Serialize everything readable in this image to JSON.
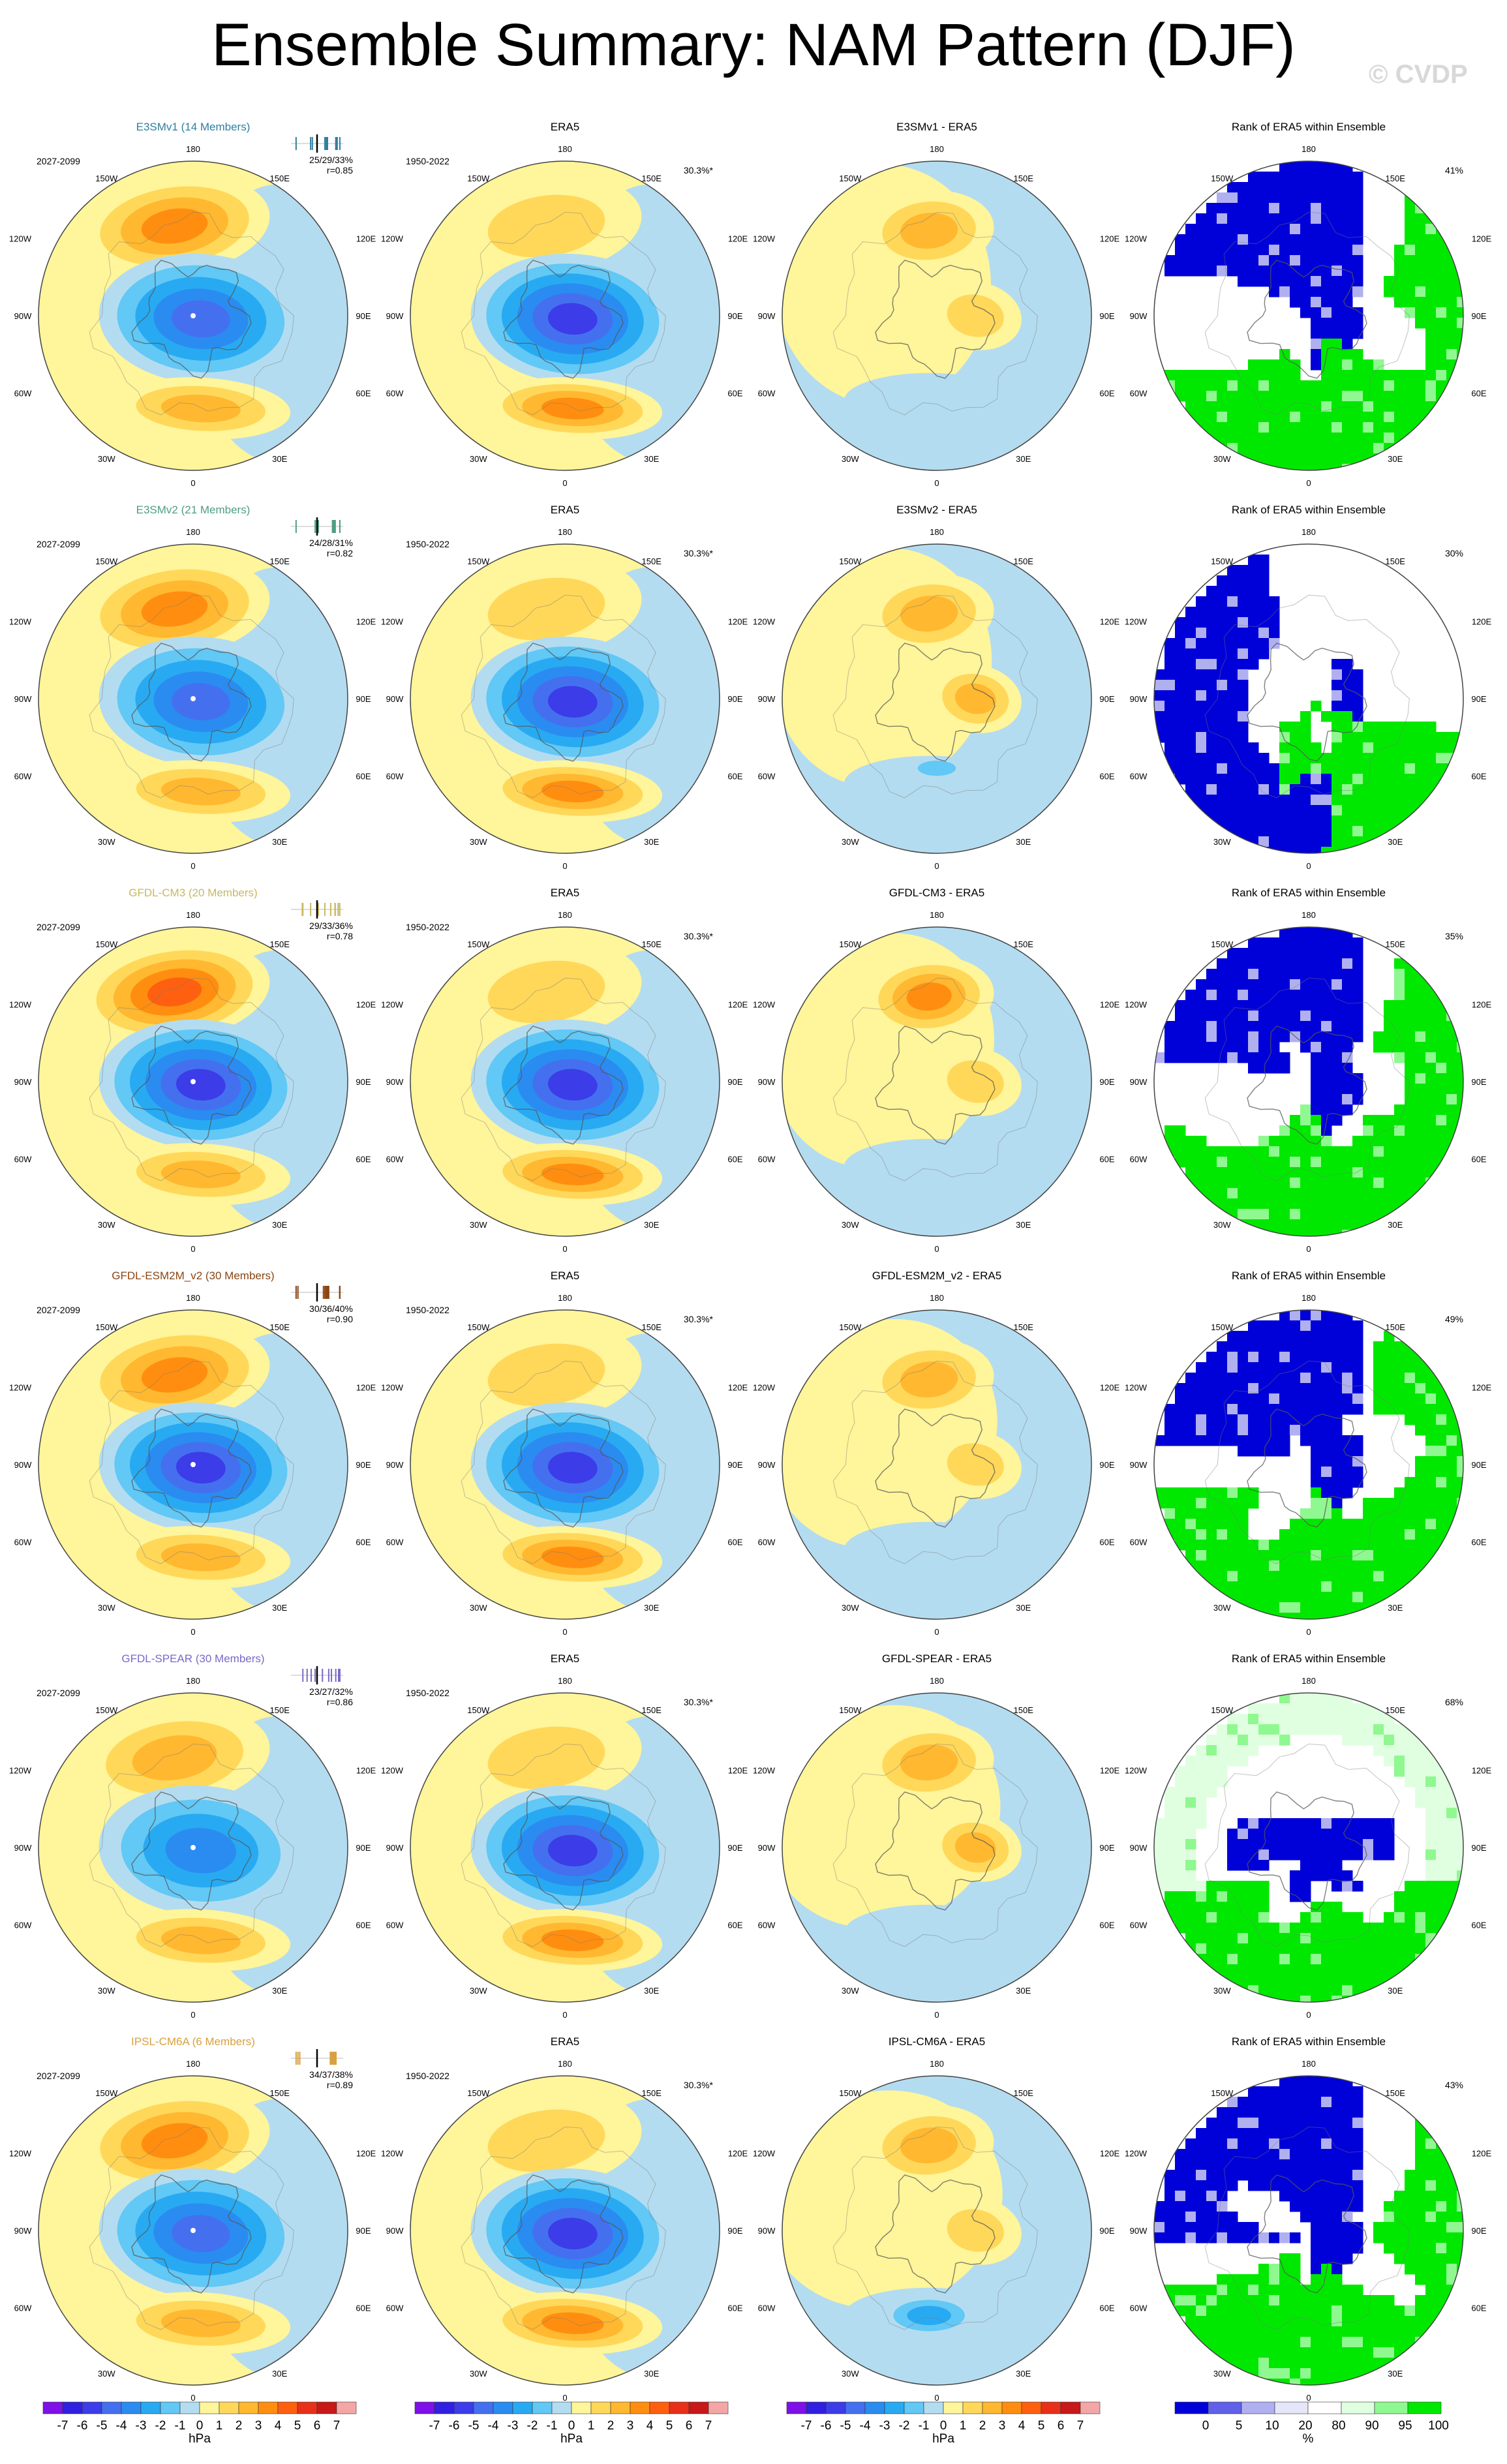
{
  "title": "Ensemble Summary: NAM Pattern (DJF)",
  "watermark": "© CVDP",
  "panel_headers": {
    "obs": "ERA5",
    "rank": "Rank of ERA5 within Ensemble"
  },
  "obs_period": "1950-2022",
  "obs_pct": "30.3%*",
  "lon_labels": {
    "top": "180",
    "ul": "150W",
    "ur": "150E",
    "l1": "120W",
    "r1": "120E",
    "l2": "90W",
    "r2": "90E",
    "l3": "60W",
    "r3": "60E",
    "bl": "30W",
    "br": "30E",
    "bottom": "0"
  },
  "rows": [
    {
      "model_title": "E3SMv1 (14 Members)",
      "model_color": "#2f7f9f",
      "period": "2027-2099",
      "stats": "25/29/33%",
      "r": "r=0.85",
      "diff_title": "E3SMv1 - ERA5",
      "rank_pct": "41%",
      "strength": 1.0,
      "diff_variant": 0,
      "rank_variant": 0
    },
    {
      "model_title": "E3SMv2 (21 Members)",
      "model_color": "#4f9f7f",
      "period": "2027-2099",
      "stats": "24/28/31%",
      "r": "r=0.82",
      "diff_title": "E3SMv2 - ERA5",
      "rank_pct": "30%",
      "strength": 1.0,
      "diff_variant": 1,
      "rank_variant": 1
    },
    {
      "model_title": "GFDL-CM3 (20 Members)",
      "model_color": "#c8b860",
      "period": "2027-2099",
      "stats": "29/33/36%",
      "r": "r=0.78",
      "diff_title": "GFDL-CM3 - ERA5",
      "rank_pct": "35%",
      "strength": 1.15,
      "diff_variant": 2,
      "rank_variant": 2
    },
    {
      "model_title": "GFDL-ESM2M_v2 (30 Members)",
      "model_color": "#8b4513",
      "period": "2027-2099",
      "stats": "30/36/40%",
      "r": "r=0.90",
      "diff_title": "GFDL-ESM2M_v2 - ERA5",
      "rank_pct": "49%",
      "strength": 1.1,
      "diff_variant": 3,
      "rank_variant": 3
    },
    {
      "model_title": "GFDL-SPEAR (30 Members)",
      "model_color": "#7b68c8",
      "period": "2027-2099",
      "stats": "23/27/32%",
      "r": "r=0.86",
      "diff_title": "GFDL-SPEAR - ERA5",
      "rank_pct": "68%",
      "strength": 0.85,
      "diff_variant": 4,
      "rank_variant": 4
    },
    {
      "model_title": "IPSL-CM6A (6 Members)",
      "model_color": "#d8a040",
      "period": "2027-2099",
      "stats": "34/37/38%",
      "r": "r=0.89",
      "diff_title": "IPSL-CM6A - ERA5",
      "rank_pct": "43%",
      "strength": 1.0,
      "diff_variant": 5,
      "rank_variant": 5
    }
  ],
  "colorbar_hpa": {
    "labels": [
      "-7",
      "-6",
      "-5",
      "-4",
      "-3",
      "-2",
      "-1",
      "0",
      "1",
      "2",
      "3",
      "4",
      "5",
      "6",
      "7"
    ],
    "unit": "hPa",
    "colors": [
      "#7f10e8",
      "#3020e0",
      "#3c3ce8",
      "#4470f0",
      "#2a8cf0",
      "#28aaf2",
      "#62c8f5",
      "#b4dcf0",
      "#fff59a",
      "#ffd85a",
      "#ffb830",
      "#ff8e10",
      "#ff6010",
      "#e83018",
      "#c81818",
      "#f4a6a6"
    ]
  },
  "colorbar_rank": {
    "labels": [
      "0",
      "5",
      "10",
      "20",
      "80",
      "90",
      "95",
      "100"
    ],
    "unit": "%",
    "colors": [
      "#0000d8",
      "#6060e8",
      "#b0b0f0",
      "#e6e6fa",
      "#ffffff",
      "#e0ffe0",
      "#90f890",
      "#00e800"
    ]
  }
}
